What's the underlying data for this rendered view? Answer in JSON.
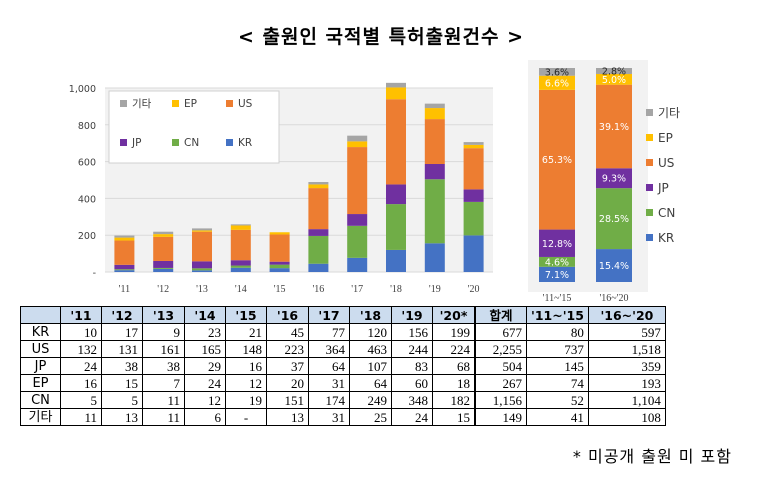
{
  "title": "< 출원인 국적별 특허출원건수 >",
  "footnote": "* 미공개 출원 미 포함",
  "colors": {
    "KR": "#4472c4",
    "CN": "#70ad47",
    "JP": "#7030a0",
    "US": "#ed7d31",
    "EP": "#ffc000",
    "기타": "#a5a5a5"
  },
  "chart_data": [
    {
      "type": "bar",
      "stacked": true,
      "categories": [
        "'11",
        "'12",
        "'13",
        "'14",
        "'15",
        "'16",
        "'17",
        "'18",
        "'19",
        "'20"
      ],
      "series": [
        {
          "name": "KR",
          "values": [
            10,
            17,
            9,
            23,
            21,
            45,
            77,
            120,
            156,
            199
          ]
        },
        {
          "name": "CN",
          "values": [
            5,
            5,
            11,
            12,
            19,
            151,
            174,
            249,
            348,
            182
          ]
        },
        {
          "name": "JP",
          "values": [
            24,
            38,
            38,
            29,
            16,
            37,
            64,
            107,
            83,
            68
          ]
        },
        {
          "name": "US",
          "values": [
            132,
            131,
            161,
            165,
            148,
            223,
            364,
            463,
            244,
            224
          ]
        },
        {
          "name": "EP",
          "values": [
            16,
            15,
            7,
            24,
            12,
            20,
            31,
            64,
            60,
            18
          ]
        },
        {
          "name": "기타",
          "values": [
            11,
            13,
            11,
            6,
            0,
            13,
            31,
            25,
            24,
            15
          ]
        }
      ],
      "yticks": [
        "-",
        "200",
        "400",
        "600",
        "800",
        "1,000"
      ],
      "ylim": [
        0,
        1000
      ],
      "legend_order": [
        "기타",
        "EP",
        "US",
        "JP",
        "CN",
        "KR"
      ],
      "legend_position": "top-left"
    },
    {
      "type": "bar",
      "stacked": true,
      "percent": true,
      "categories": [
        "'11~'15",
        "'16~'20"
      ],
      "series": [
        {
          "name": "KR",
          "values": [
            7.1,
            15.4
          ],
          "labels": [
            "7.1%",
            "15.4%"
          ]
        },
        {
          "name": "CN",
          "values": [
            4.6,
            28.5
          ],
          "labels": [
            "4.6%",
            "28.5%"
          ]
        },
        {
          "name": "JP",
          "values": [
            12.8,
            9.3
          ],
          "labels": [
            "12.8%",
            "9.3%"
          ]
        },
        {
          "name": "US",
          "values": [
            65.3,
            39.1
          ],
          "labels": [
            "65.3%",
            "39.1%"
          ]
        },
        {
          "name": "EP",
          "values": [
            6.6,
            5.0
          ],
          "labels": [
            "6.6%",
            "5.0%"
          ]
        },
        {
          "name": "기타",
          "values": [
            3.6,
            2.8
          ],
          "labels": [
            "3.6%",
            "2.8%"
          ]
        }
      ],
      "legend_order": [
        "기타",
        "EP",
        "US",
        "JP",
        "CN",
        "KR"
      ],
      "legend_position": "right"
    },
    {
      "type": "table",
      "headers": [
        "",
        "'11",
        "'12",
        "'13",
        "'14",
        "'15",
        "'16",
        "'17",
        "'18",
        "'19",
        "'20*",
        "합계",
        "'11~'15",
        "'16~'20"
      ],
      "rows": [
        [
          "KR",
          "10",
          "17",
          "9",
          "23",
          "21",
          "45",
          "77",
          "120",
          "156",
          "199",
          "677",
          "80",
          "597"
        ],
        [
          "US",
          "132",
          "131",
          "161",
          "165",
          "148",
          "223",
          "364",
          "463",
          "244",
          "224",
          "2,255",
          "737",
          "1,518"
        ],
        [
          "JP",
          "24",
          "38",
          "38",
          "29",
          "16",
          "37",
          "64",
          "107",
          "83",
          "68",
          "504",
          "145",
          "359"
        ],
        [
          "EP",
          "16",
          "15",
          "7",
          "24",
          "12",
          "20",
          "31",
          "64",
          "60",
          "18",
          "267",
          "74",
          "193"
        ],
        [
          "CN",
          "5",
          "5",
          "11",
          "12",
          "19",
          "151",
          "174",
          "249",
          "348",
          "182",
          "1,156",
          "52",
          "1,104"
        ],
        [
          "기타",
          "11",
          "13",
          "11",
          "6",
          "-",
          "13",
          "31",
          "25",
          "24",
          "15",
          "149",
          "41",
          "108"
        ]
      ]
    }
  ]
}
